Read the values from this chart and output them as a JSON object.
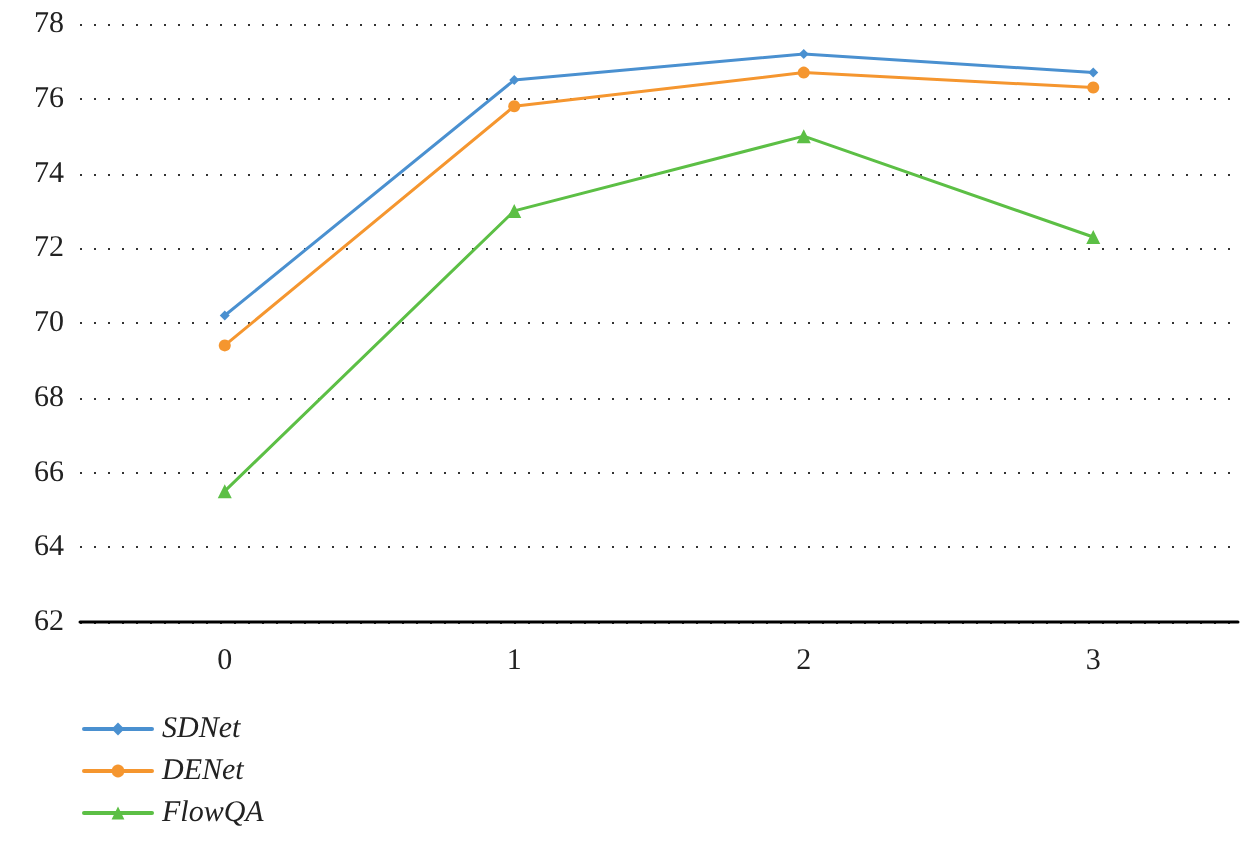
{
  "chart_data": {
    "type": "line",
    "categories": [
      "0",
      "1",
      "2",
      "3"
    ],
    "series": [
      {
        "name": "SDNet",
        "color": "#4a90d0",
        "marker": "diamond",
        "values": [
          70.2,
          76.5,
          77.2,
          76.7
        ]
      },
      {
        "name": "DENet",
        "color": "#f5962f",
        "marker": "circle",
        "values": [
          69.4,
          75.8,
          76.7,
          76.3
        ]
      },
      {
        "name": "FlowQA",
        "color": "#5cbf45",
        "marker": "triangle",
        "values": [
          65.5,
          73.0,
          75.0,
          72.3
        ]
      }
    ],
    "ylim": [
      62,
      78
    ],
    "yticks": [
      62,
      64,
      66,
      68,
      70,
      72,
      74,
      76,
      78
    ],
    "grid": "y",
    "legend": "bottom left",
    "line_style": "solid"
  }
}
